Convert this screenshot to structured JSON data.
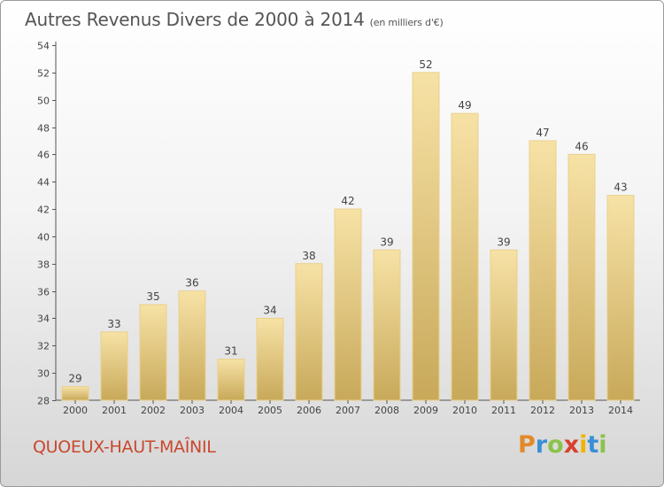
{
  "header": {
    "title": "Autres Revenus Divers de 2000 à 2014",
    "subtitle": "(en milliers d'€)"
  },
  "footer": {
    "town": "QUOEUX-HAUT-MAÎNIL",
    "logo_letters": [
      "P",
      "r",
      "o",
      "x",
      "i",
      "t",
      "i"
    ],
    "logo_colors": [
      "#e2892a",
      "#3a8fd6",
      "#8bc34a",
      "#d8402f",
      "#f0b400",
      "#3a8fd6",
      "#8bc34a"
    ]
  },
  "chart_data": {
    "type": "bar",
    "title": "Autres Revenus Divers de 2000 à 2014",
    "categories": [
      "2000",
      "2001",
      "2002",
      "2003",
      "2004",
      "2005",
      "2006",
      "2007",
      "2008",
      "2009",
      "2010",
      "2011",
      "2012",
      "2013",
      "2014"
    ],
    "values": [
      29,
      33,
      35,
      36,
      31,
      34,
      38,
      42,
      39,
      52,
      49,
      39,
      47,
      46,
      43
    ],
    "ylim": [
      28,
      54
    ],
    "yticks": [
      28,
      30,
      32,
      34,
      36,
      38,
      40,
      42,
      44,
      46,
      48,
      50,
      52,
      54
    ],
    "grid": false,
    "colors": {
      "bar_top": "#f7e2a6",
      "bar_bottom": "#c8a95a",
      "bar_edge": "#e9d08a"
    }
  }
}
